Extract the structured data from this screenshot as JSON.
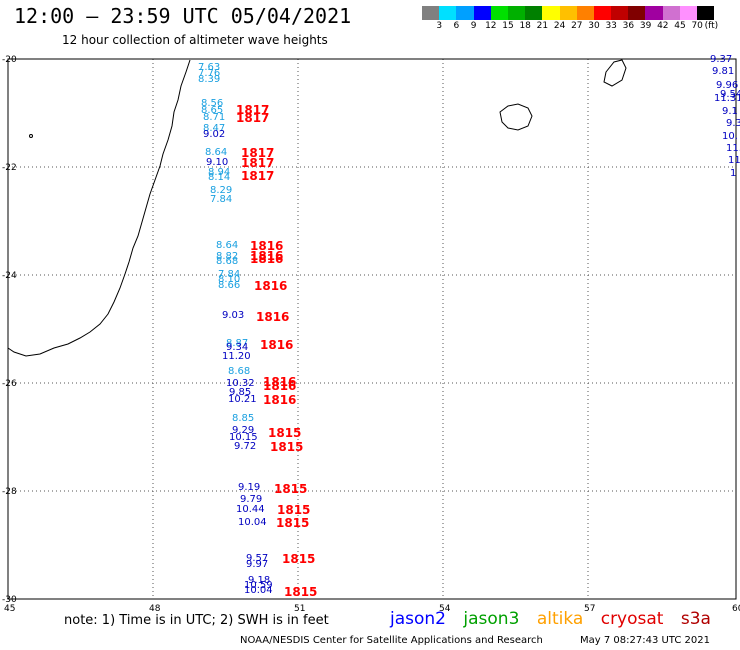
{
  "header": {
    "title": "12:00 – 23:59 UTC 05/04/2021",
    "subtitle": "12 hour collection of altimeter wave heights"
  },
  "legend": {
    "colors": [
      "#808080",
      "#00e0ff",
      "#00a0ff",
      "#0000ff",
      "#00e000",
      "#00b000",
      "#008000",
      "#ffff00",
      "#ffc000",
      "#ff8000",
      "#ff0000",
      "#c00000",
      "#800000",
      "#a000a0",
      "#d070d0",
      "#ff90ff",
      "#000000"
    ],
    "labels": [
      "3",
      "6",
      "9",
      "12",
      "15",
      "18",
      "21",
      "24",
      "27",
      "30",
      "33",
      "36",
      "39",
      "42",
      "45",
      "70",
      "(ft)"
    ]
  },
  "axes": {
    "lat_labels": [
      "-20",
      "-22",
      "-24",
      "-26",
      "-28",
      "-30"
    ],
    "lon_labels": [
      "45",
      "48",
      "51",
      "54",
      "57",
      "60"
    ]
  },
  "wave_heights": [
    {
      "v": "7.63",
      "c": "#1aa0e0"
    },
    {
      "v": "7.76",
      "c": "#1aa0e0"
    },
    {
      "v": "8.39",
      "c": "#1aa0e0"
    },
    {
      "v": "8.56",
      "c": "#1aa0e0"
    },
    {
      "v": "8.65",
      "c": "#1aa0e0"
    },
    {
      "v": "8.71",
      "c": "#1aa0e0"
    },
    {
      "v": "8.47",
      "c": "#1aa0e0"
    },
    {
      "v": "9.02",
      "c": "#0000c0"
    },
    {
      "v": "8.64",
      "c": "#1aa0e0"
    },
    {
      "v": "9.10",
      "c": "#0000c0"
    },
    {
      "v": "8.94",
      "c": "#1aa0e0"
    },
    {
      "v": "8.14",
      "c": "#1aa0e0"
    },
    {
      "v": "8.29",
      "c": "#1aa0e0"
    },
    {
      "v": "7.84",
      "c": "#1aa0e0"
    },
    {
      "v": "8.64",
      "c": "#1aa0e0"
    },
    {
      "v": "8.82",
      "c": "#1aa0e0"
    },
    {
      "v": "8.68",
      "c": "#1aa0e0"
    },
    {
      "v": "7.84",
      "c": "#1aa0e0"
    },
    {
      "v": "8.10",
      "c": "#1aa0e0"
    },
    {
      "v": "8.66",
      "c": "#1aa0e0"
    },
    {
      "v": "9.03",
      "c": "#0000c0"
    },
    {
      "v": "8.87",
      "c": "#1aa0e0"
    },
    {
      "v": "9.34",
      "c": "#0000c0"
    },
    {
      "v": "11.20",
      "c": "#0000c0"
    },
    {
      "v": "8.68",
      "c": "#1aa0e0"
    },
    {
      "v": "10.32",
      "c": "#0000c0"
    },
    {
      "v": "9.85",
      "c": "#0000c0"
    },
    {
      "v": "10.21",
      "c": "#0000c0"
    },
    {
      "v": "8.85",
      "c": "#1aa0e0"
    },
    {
      "v": "9.29",
      "c": "#0000c0"
    },
    {
      "v": "10.15",
      "c": "#0000c0"
    },
    {
      "v": "9.72",
      "c": "#0000c0"
    },
    {
      "v": "9.19",
      "c": "#0000c0"
    },
    {
      "v": "9.79",
      "c": "#0000c0"
    },
    {
      "v": "10.44",
      "c": "#0000c0"
    },
    {
      "v": "10.04",
      "c": "#0000c0"
    },
    {
      "v": "9.57",
      "c": "#0000c0"
    },
    {
      "v": "9.97",
      "c": "#0000c0"
    },
    {
      "v": "9.18",
      "c": "#0000c0"
    },
    {
      "v": "10.59",
      "c": "#0000c0"
    },
    {
      "v": "10.04",
      "c": "#0000c0"
    },
    {
      "v": "9.37",
      "c": "#0000c0"
    },
    {
      "v": "9.81",
      "c": "#0000c0"
    },
    {
      "v": "9.96",
      "c": "#0000c0"
    },
    {
      "v": "9.54",
      "c": "#0000c0"
    },
    {
      "v": "11.31",
      "c": "#0000c0"
    },
    {
      "v": "9.1",
      "c": "#0000c0"
    },
    {
      "v": "9.3",
      "c": "#0000c0"
    },
    {
      "v": "10.",
      "c": "#0000c0"
    },
    {
      "v": "11.",
      "c": "#0000c0"
    },
    {
      "v": "11",
      "c": "#0000c0"
    },
    {
      "v": "1",
      "c": "#0000c0"
    }
  ],
  "times": [
    {
      "v": "1817"
    },
    {
      "v": "1817"
    },
    {
      "v": "1817"
    },
    {
      "v": "1817"
    },
    {
      "v": "1817"
    },
    {
      "v": "1816"
    },
    {
      "v": "1816"
    },
    {
      "v": "1816"
    },
    {
      "v": "1816"
    },
    {
      "v": "1816"
    },
    {
      "v": "1816"
    },
    {
      "v": "1816"
    },
    {
      "v": "1816"
    },
    {
      "v": "1816"
    },
    {
      "v": "1815"
    },
    {
      "v": "1815"
    },
    {
      "v": "1815"
    },
    {
      "v": "1815"
    },
    {
      "v": "1815"
    },
    {
      "v": "1815"
    },
    {
      "v": "1815"
    }
  ],
  "footer": {
    "note": "note:  1) Time is in UTC;  2) SWH is in feet",
    "satellites": [
      {
        "name": "jason2",
        "color": "#0000ff"
      },
      {
        "name": "jason3",
        "color": "#00a000"
      },
      {
        "name": "altika",
        "color": "#ffa000"
      },
      {
        "name": "cryosat",
        "color": "#e00000"
      },
      {
        "name": "s3a",
        "color": "#b00000"
      }
    ],
    "credit": "NOAA/NESDIS Center for Satellite Applications and Research",
    "stamp": "May  7 08:27:43 UTC 2021"
  }
}
